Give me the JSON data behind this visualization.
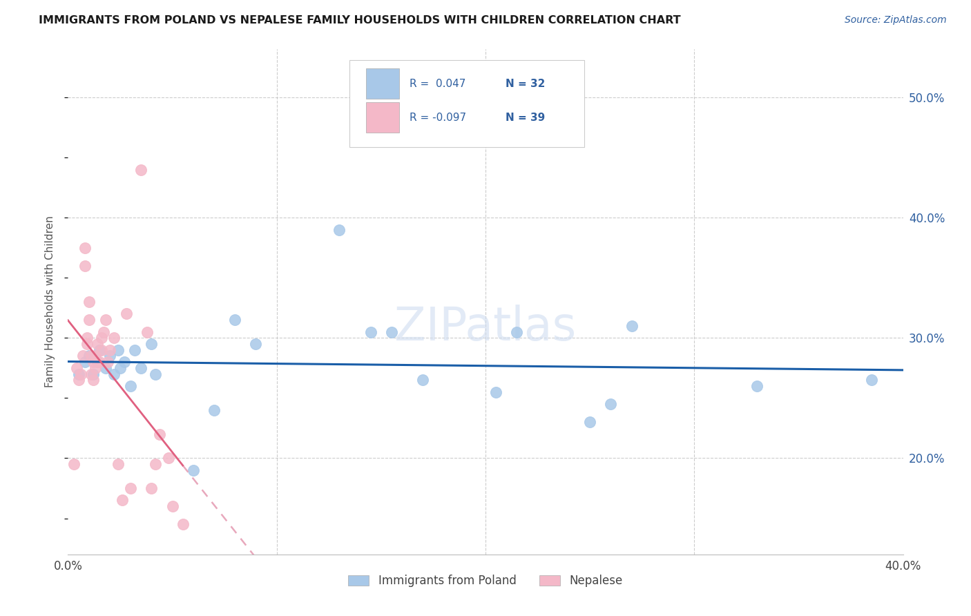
{
  "title": "IMMIGRANTS FROM POLAND VS NEPALESE FAMILY HOUSEHOLDS WITH CHILDREN CORRELATION CHART",
  "source": "Source: ZipAtlas.com",
  "ylabel": "Family Households with Children",
  "legend_label_blue": "Immigrants from Poland",
  "legend_label_pink": "Nepalese",
  "blue_scatter_color": "#a8c8e8",
  "pink_scatter_color": "#f4b8c8",
  "blue_line_color": "#1a5ea8",
  "pink_solid_color": "#e06080",
  "pink_dashed_color": "#e8a8bc",
  "text_color": "#3060a0",
  "background_color": "#ffffff",
  "grid_color": "#cccccc",
  "xlim": [
    0.0,
    0.4
  ],
  "ylim": [
    0.12,
    0.54
  ],
  "right_yticks": [
    0.2,
    0.3,
    0.4,
    0.5
  ],
  "right_yticklabels": [
    "20.0%",
    "30.0%",
    "40.0%",
    "50.0%"
  ],
  "blue_points_x": [
    0.005,
    0.008,
    0.01,
    0.012,
    0.014,
    0.015,
    0.018,
    0.02,
    0.022,
    0.024,
    0.025,
    0.027,
    0.03,
    0.032,
    0.035,
    0.04,
    0.042,
    0.06,
    0.07,
    0.08,
    0.09,
    0.13,
    0.145,
    0.155,
    0.17,
    0.205,
    0.215,
    0.25,
    0.26,
    0.27,
    0.33,
    0.385
  ],
  "blue_points_y": [
    0.27,
    0.28,
    0.285,
    0.27,
    0.28,
    0.29,
    0.275,
    0.285,
    0.27,
    0.29,
    0.275,
    0.28,
    0.26,
    0.29,
    0.275,
    0.295,
    0.27,
    0.19,
    0.24,
    0.315,
    0.295,
    0.39,
    0.305,
    0.305,
    0.265,
    0.255,
    0.305,
    0.23,
    0.245,
    0.31,
    0.26,
    0.265
  ],
  "pink_points_x": [
    0.003,
    0.004,
    0.005,
    0.006,
    0.007,
    0.008,
    0.008,
    0.009,
    0.009,
    0.01,
    0.01,
    0.011,
    0.011,
    0.012,
    0.012,
    0.013,
    0.013,
    0.014,
    0.014,
    0.015,
    0.016,
    0.016,
    0.017,
    0.018,
    0.019,
    0.02,
    0.022,
    0.024,
    0.026,
    0.028,
    0.03,
    0.035,
    0.038,
    0.04,
    0.042,
    0.044,
    0.048,
    0.05,
    0.055
  ],
  "pink_points_y": [
    0.195,
    0.275,
    0.265,
    0.27,
    0.285,
    0.36,
    0.375,
    0.295,
    0.3,
    0.315,
    0.33,
    0.27,
    0.285,
    0.265,
    0.28,
    0.275,
    0.285,
    0.28,
    0.295,
    0.28,
    0.29,
    0.3,
    0.305,
    0.315,
    0.28,
    0.29,
    0.3,
    0.195,
    0.165,
    0.32,
    0.175,
    0.44,
    0.305,
    0.175,
    0.195,
    0.22,
    0.2,
    0.16,
    0.145
  ]
}
